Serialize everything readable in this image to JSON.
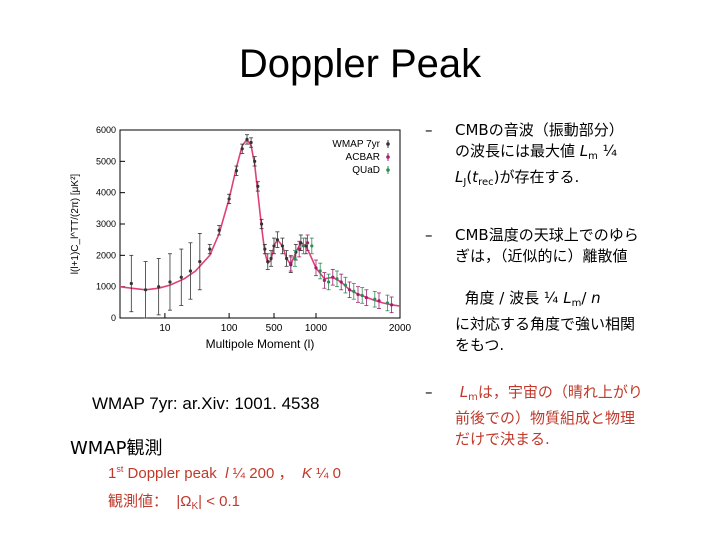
{
  "title": "Doppler Peak",
  "chart_data": {
    "type": "scatter",
    "xlabel": "Multipole Moment (l)",
    "ylabel": "l(l+1)C_l^TT/(2π) [μK²]",
    "x_scale": "log",
    "xlim": [
      2,
      2000
    ],
    "ylim": [
      0,
      6000
    ],
    "x_ticks": [
      10,
      100,
      500,
      1000,
      2000
    ],
    "x_tick_labels": [
      "10",
      "100",
      "500",
      "1000",
      "2000"
    ],
    "y_ticks": [
      0,
      1000,
      2000,
      3000,
      4000,
      5000,
      6000
    ],
    "y_tick_labels": [
      "0",
      "1000",
      "2000",
      "3000",
      "4000",
      "5000",
      "6000"
    ],
    "legend": {
      "placement": "top-right",
      "entries": [
        "WMAP 7yr",
        "ACBAR",
        "QUaD"
      ]
    },
    "series": [
      {
        "name": "WMAP 7yr",
        "color": "#333333",
        "x": [
          3,
          5,
          8,
          12,
          18,
          25,
          35,
          50,
          70,
          100,
          130,
          160,
          190,
          220,
          250,
          280,
          320,
          360,
          400,
          450,
          500,
          540,
          600,
          650,
          700,
          760,
          820,
          880
        ],
        "y": [
          1100,
          900,
          1000,
          1150,
          1300,
          1500,
          1800,
          2200,
          2800,
          3800,
          4700,
          5400,
          5700,
          5600,
          5000,
          4200,
          3000,
          2200,
          1800,
          1900,
          2300,
          2500,
          2300,
          1900,
          1700,
          2100,
          2400,
          2300
        ]
      },
      {
        "name": "ACBAR",
        "color": "#a0206e",
        "x": [
          700,
          800,
          900,
          1000,
          1100,
          1200,
          1300,
          1400,
          1500,
          1600,
          1750,
          1900
        ],
        "y": [
          1750,
          2200,
          2400,
          1600,
          1200,
          1300,
          1150,
          900,
          750,
          650,
          550,
          420
        ]
      },
      {
        "name": "QUaD",
        "color": "#2e8b57",
        "x": [
          750,
          850,
          950,
          1050,
          1150,
          1250,
          1350,
          1450,
          1550,
          1700,
          1850
        ],
        "y": [
          1900,
          2300,
          2300,
          1500,
          1150,
          1250,
          1050,
          850,
          720,
          600,
          480
        ]
      }
    ],
    "model_curve": {
      "x": [
        2,
        3,
        5,
        8,
        12,
        20,
        30,
        50,
        70,
        100,
        130,
        160,
        190,
        220,
        250,
        280,
        320,
        360,
        400,
        450,
        500,
        540,
        600,
        650,
        700,
        760,
        820,
        880,
        950,
        1000,
        1100,
        1200,
        1300,
        1400,
        1500,
        1600,
        1700,
        1800,
        1900,
        2000
      ],
      "y": [
        1000,
        950,
        900,
        950,
        1050,
        1250,
        1500,
        2000,
        2700,
        3800,
        4800,
        5500,
        5700,
        5500,
        4900,
        4000,
        2900,
        2100,
        1750,
        1850,
        2300,
        2500,
        2300,
        1900,
        1700,
        2100,
        2400,
        2300,
        1900,
        1600,
        1250,
        1300,
        1150,
        900,
        760,
        660,
        560,
        480,
        420,
        380
      ]
    }
  },
  "bullets": [
    {
      "dash": "–",
      "html": "CMBの音波（振動部分）<br>の波長には最大値 <i>L</i><span class=\"sub\">m</span> ¼<br><i>L</i><span class=\"sub\">J</span>(<i>t</i><span class=\"sub\">rec</span>)が存在する."
    },
    {
      "dash": "–",
      "html": "CMB温度の天球上でのゆら<br>ぎは，（近似的に）離散値"
    },
    {
      "dash": "",
      "html": "&nbsp;&nbsp;角度 / 波長 ¼ <i>L</i><span class=\"sub\">m</span>/ <i>n</i><br>に対応する角度で強い相関<br>をもつ."
    },
    {
      "dash": "–",
      "html": "<span class=\"red\">&nbsp;<i>L</i><span class=\"sub\">m</span>は，宇宙の（晴れ上がり<br>前後での）物質組成と物理<br>だけで決まる.</span>"
    }
  ],
  "citation": "WMAP 7yr: ar.Xiv: 1001. 4538",
  "obs_heading": "WMAP観測",
  "peak_line": "1st Doppler peak  l ¼ 200 ，  K ¼ 0",
  "measure_line": "観測値：  |Ω_K| < 0.1",
  "colors": {
    "accent_red": "#c0392b"
  }
}
